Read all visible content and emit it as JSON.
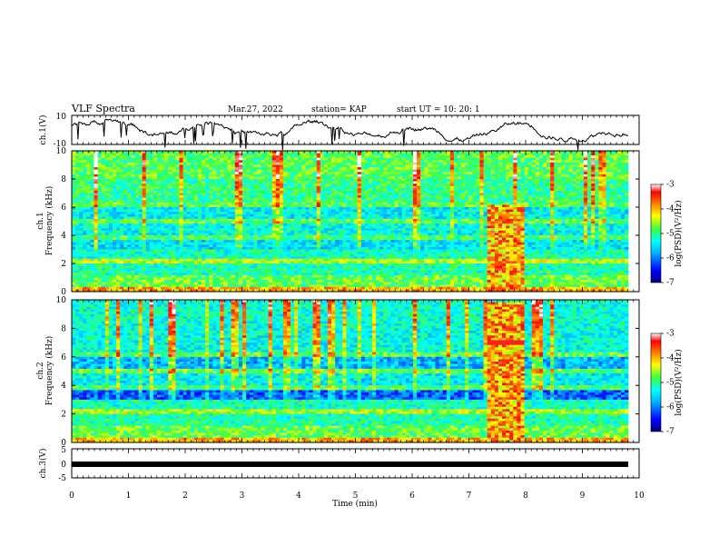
{
  "header": {
    "title": "VLF Spectra",
    "date": "Mar.27, 2022",
    "station": "station= KAP",
    "start": "start  UT  =   10: 20: 1"
  },
  "chart_data": [
    {
      "type": "line",
      "panel": "ch1-waveform",
      "ylabel": "ch.1(V)",
      "ylim": [
        -10,
        10
      ],
      "yticks": [
        "10",
        "-10"
      ],
      "xlim": [
        0,
        10
      ]
    },
    {
      "type": "heatmap",
      "panel": "ch1-spectrogram",
      "ylabel_line1": "ch.1",
      "ylabel_line2": "Frequency  (kHz)",
      "ylim": [
        0,
        10
      ],
      "yticks": [
        "0",
        "2",
        "4",
        "6",
        "8",
        "10"
      ],
      "xlim": [
        0,
        10
      ],
      "colorbar": {
        "label": "log(PSD)(V²/Hz)",
        "ticks": [
          "-3",
          "-4",
          "-5",
          "-6",
          "-7"
        ],
        "range": [
          -7,
          -3
        ]
      }
    },
    {
      "type": "heatmap",
      "panel": "ch2-spectrogram",
      "ylabel_line1": "ch.2",
      "ylabel_line2": "Frequency  (kHz)",
      "ylim": [
        0,
        10
      ],
      "yticks": [
        "0",
        "2",
        "4",
        "6",
        "8",
        "10"
      ],
      "xlim": [
        0,
        10
      ],
      "colorbar": {
        "label": "log(PSD)(V²/Hz)",
        "ticks": [
          "-3",
          "-4",
          "-5",
          "-6",
          "-7"
        ],
        "range": [
          -7,
          -3
        ]
      }
    },
    {
      "type": "line",
      "panel": "ch3-waveform",
      "ylabel": "ch.3(V)",
      "ylim": [
        -5,
        5
      ],
      "yticks": [
        "5",
        "0",
        "-5"
      ],
      "xlim": [
        0,
        10
      ],
      "xlabel": "Time  (min)",
      "xticks": [
        "0",
        "1",
        "2",
        "3",
        "4",
        "5",
        "6",
        "7",
        "8",
        "9",
        "10"
      ]
    }
  ],
  "colors": {
    "scale": [
      "#000080",
      "#0000ff",
      "#00a0ff",
      "#00ffff",
      "#60ff60",
      "#ffff00",
      "#ff8000",
      "#ff0000",
      "#ffffff"
    ]
  }
}
